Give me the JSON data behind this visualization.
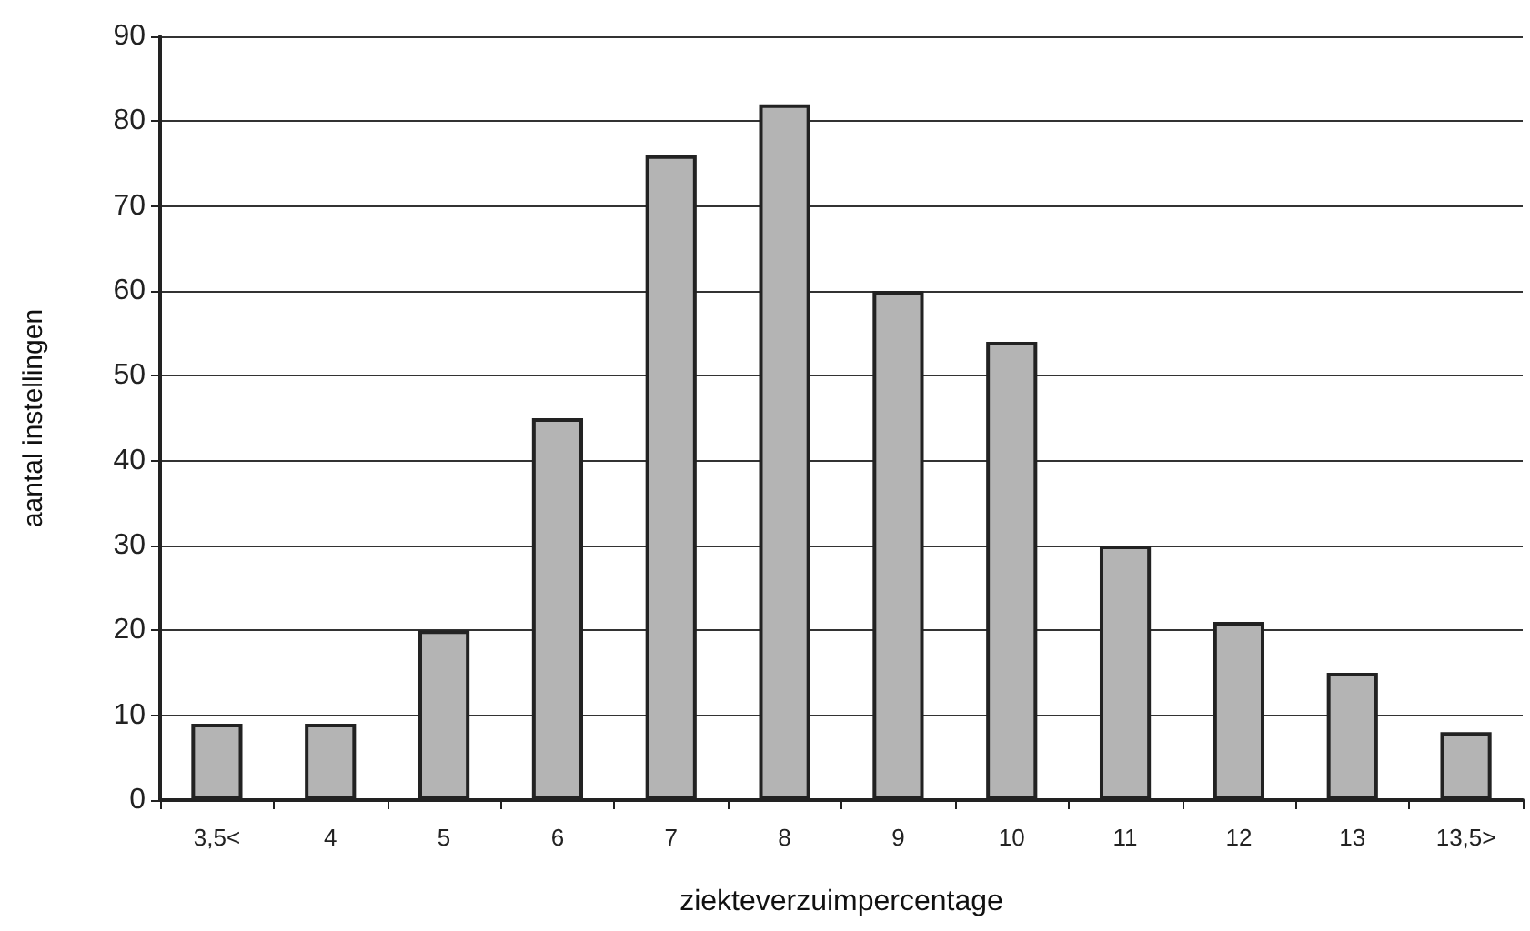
{
  "chart_data": {
    "type": "bar",
    "xlabel": "ziekteverzuimpercentage",
    "ylabel": "aantal instellingen",
    "categories": [
      "3,5<",
      "4",
      "5",
      "6",
      "7",
      "8",
      "9",
      "10",
      "11",
      "12",
      "13",
      "13,5>"
    ],
    "values": [
      9,
      9,
      20,
      45,
      76,
      82,
      60,
      54,
      30,
      21,
      15,
      8
    ],
    "color": "#b4b4b4",
    "ylim": [
      0,
      90
    ],
    "yticks": [
      0,
      10,
      20,
      30,
      40,
      50,
      60,
      70,
      80,
      90
    ],
    "grid": "y"
  }
}
